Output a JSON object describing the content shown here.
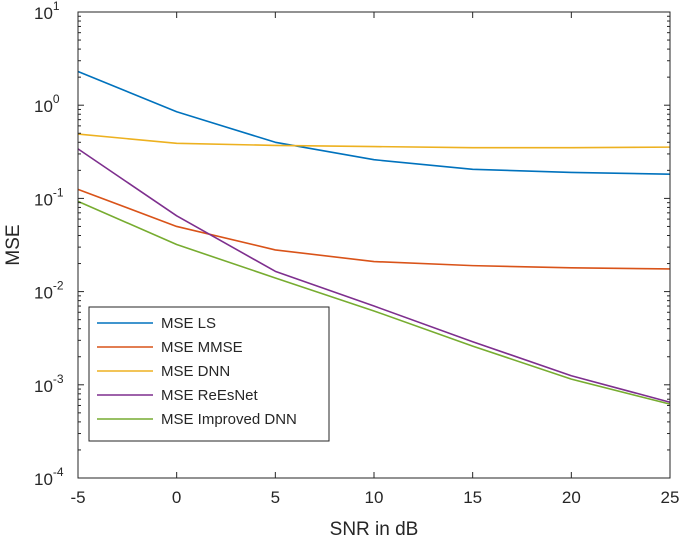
{
  "chart_data": {
    "type": "line",
    "title": "",
    "xlabel": "SNR in dB",
    "ylabel": "MSE",
    "xlim": [
      -5,
      25
    ],
    "ylim": [
      0.0001,
      10
    ],
    "yscale": "log",
    "grid": false,
    "legend_position": "bottom-left",
    "x_ticks": [
      {
        "value": -5,
        "label": "-5"
      },
      {
        "value": 0,
        "label": "0"
      },
      {
        "value": 5,
        "label": "5"
      },
      {
        "value": 10,
        "label": "10"
      },
      {
        "value": 15,
        "label": "15"
      },
      {
        "value": 20,
        "label": "20"
      },
      {
        "value": 25,
        "label": "25"
      }
    ],
    "y_ticks": [
      {
        "value": 10,
        "base": "10",
        "exp": "1"
      },
      {
        "value": 1,
        "base": "10",
        "exp": "0"
      },
      {
        "value": 0.1,
        "base": "10",
        "exp": "-1"
      },
      {
        "value": 0.01,
        "base": "10",
        "exp": "-2"
      },
      {
        "value": 0.001,
        "base": "10",
        "exp": "-3"
      },
      {
        "value": 0.0001,
        "base": "10",
        "exp": "-4"
      }
    ],
    "series": [
      {
        "name": "MSE LS",
        "color": "#0072BD",
        "points": [
          [
            -5,
            2.3
          ],
          [
            0,
            0.85
          ],
          [
            5,
            0.4
          ],
          [
            10,
            0.26
          ],
          [
            15,
            0.205
          ],
          [
            20,
            0.19
          ],
          [
            25,
            0.182
          ]
        ]
      },
      {
        "name": "MSE MMSE",
        "color": "#D95319",
        "points": [
          [
            -5,
            0.125
          ],
          [
            0,
            0.05
          ],
          [
            5,
            0.028
          ],
          [
            10,
            0.021
          ],
          [
            15,
            0.019
          ],
          [
            20,
            0.018
          ],
          [
            25,
            0.0175
          ]
        ]
      },
      {
        "name": "MSE DNN",
        "color": "#EDB120",
        "points": [
          [
            -5,
            0.49
          ],
          [
            0,
            0.39
          ],
          [
            5,
            0.37
          ],
          [
            10,
            0.36
          ],
          [
            15,
            0.35
          ],
          [
            20,
            0.35
          ],
          [
            25,
            0.355
          ]
        ]
      },
      {
        "name": "MSE ReEsNet",
        "color": "#7E2F8E",
        "points": [
          [
            -5,
            0.34
          ],
          [
            0,
            0.065
          ],
          [
            5,
            0.0165
          ],
          [
            10,
            0.007
          ],
          [
            15,
            0.0029
          ],
          [
            20,
            0.00125
          ],
          [
            25,
            0.00065
          ]
        ]
      },
      {
        "name": "MSE Improved DNN",
        "color": "#77AC30",
        "points": [
          [
            -5,
            0.093
          ],
          [
            0,
            0.032
          ],
          [
            5,
            0.014
          ],
          [
            10,
            0.0062
          ],
          [
            15,
            0.0026
          ],
          [
            20,
            0.00115
          ],
          [
            25,
            0.00062
          ]
        ]
      }
    ]
  }
}
